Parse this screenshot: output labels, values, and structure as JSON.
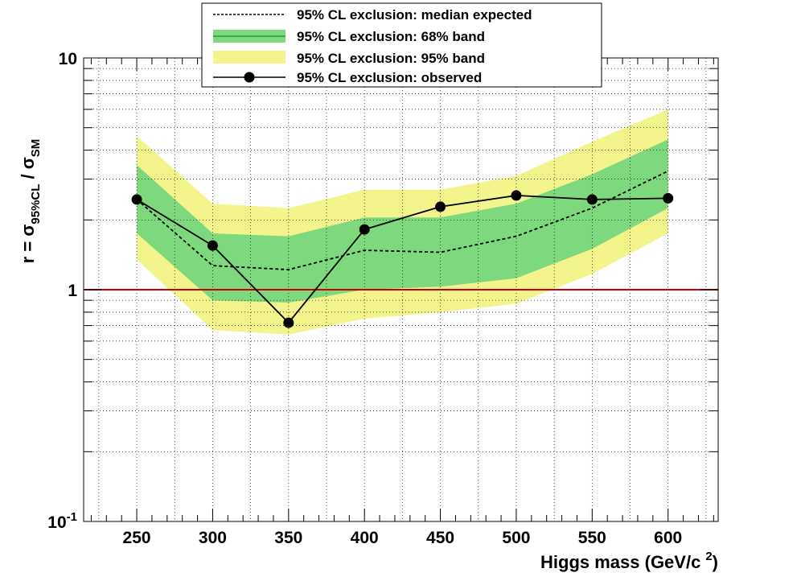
{
  "chart_data": {
    "type": "line",
    "title": "",
    "xlabel": "Higgs mass (GeV/c",
    "xlabel_sup": "2",
    "xlabel_close": ")",
    "ylabel": {
      "prefix": "r = σ",
      "sub1": "95%CL",
      "mid": " / σ",
      "sub2": "SM"
    },
    "x_scale": "linear",
    "y_scale": "log",
    "xlim": [
      215,
      633
    ],
    "ylim": [
      0.1,
      10
    ],
    "x_ticks": [
      "250",
      "300",
      "350",
      "400",
      "450",
      "500",
      "550",
      "600"
    ],
    "y_ticks": [
      {
        "base": "10",
        "exp": "-1",
        "value": 0.1
      },
      {
        "base": "1",
        "exp": "",
        "value": 1
      },
      {
        "base": "10",
        "exp": "",
        "value": 10
      }
    ],
    "grid": true,
    "legend_position": "top-center",
    "x": [
      250,
      300,
      350,
      400,
      450,
      500,
      550,
      600
    ],
    "series": [
      {
        "name": "95% CL exclusion: median expected",
        "kind": "dashed-line",
        "color": "#000000",
        "values": [
          2.45,
          1.27,
          1.22,
          1.48,
          1.45,
          1.7,
          2.25,
          3.25
        ]
      },
      {
        "name": "95% CL exclusion: 68% band",
        "kind": "band",
        "color": "#7ed87e",
        "low": [
          1.75,
          0.9,
          0.88,
          1.0,
          1.03,
          1.12,
          1.5,
          2.25
        ],
        "high": [
          3.45,
          1.75,
          1.7,
          2.05,
          2.05,
          2.35,
          3.15,
          4.45
        ]
      },
      {
        "name": "95% CL exclusion: 95% band",
        "kind": "band",
        "color": "#f4f48c",
        "low": [
          1.35,
          0.67,
          0.64,
          0.75,
          0.8,
          0.87,
          1.17,
          1.75
        ],
        "high": [
          4.6,
          2.35,
          2.25,
          2.7,
          2.7,
          3.1,
          4.35,
          6.0
        ]
      },
      {
        "name": "95% CL exclusion: observed",
        "kind": "line-markers",
        "color": "#000000",
        "values": [
          2.45,
          1.55,
          0.72,
          1.82,
          2.28,
          2.55,
          2.45,
          2.48
        ]
      }
    ],
    "reference_line": {
      "y": 1,
      "color": "#cc0000"
    }
  }
}
